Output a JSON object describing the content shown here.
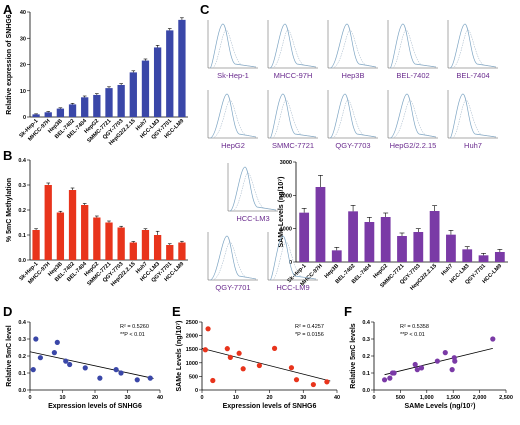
{
  "panel_labels": [
    "A",
    "B",
    "C",
    "D",
    "E",
    "F"
  ],
  "flow_panels": {
    "labels": [
      "Sk-Hep-1",
      "MHCC-97H",
      "Hep3B",
      "BEL-7402",
      "BEL-7404",
      "HepG2",
      "SMMC-7721",
      "QGY-7703",
      "HepG2/2.2.15",
      "Huh7",
      "HCC-LM3",
      "QGY-7701",
      "HCC-LM9"
    ],
    "line_color": "#7fa6c4",
    "label_color": "#6a2b8e"
  },
  "colors": {
    "blue": "#3a47a8",
    "red": "#e8341c",
    "purple": "#7a3aa6",
    "grid": "#000000"
  },
  "chart_data": [
    {
      "id": "A",
      "type": "bar",
      "ylabel": "Relative expression of SNHG6",
      "ylim": [
        0,
        40
      ],
      "yticks": [
        0,
        10,
        20,
        30,
        40
      ],
      "categories": [
        "Sk-Hep-1",
        "MHCC-97H",
        "Hep3B",
        "BEL-7402",
        "BEL-7404",
        "HepG2",
        "SMMC-7721",
        "QGY-7703",
        "HepG2/2.2.15",
        "Huh7",
        "HCC-LM3",
        "QGY-7701",
        "HCC-LM9"
      ],
      "values": [
        1.0,
        1.8,
        3.2,
        4.8,
        7.5,
        8.4,
        11.0,
        12.2,
        17.0,
        21.5,
        26.5,
        33.0,
        37.0
      ],
      "errors": [
        0.2,
        0.3,
        0.3,
        0.4,
        0.5,
        0.5,
        0.5,
        0.5,
        0.6,
        0.6,
        0.8,
        0.7,
        0.8
      ]
    },
    {
      "id": "B",
      "type": "bar",
      "ylabel": "% 5mC Methylation",
      "ylim": [
        0,
        0.4
      ],
      "yticks": [
        0.0,
        0.1,
        0.2,
        0.3,
        0.4
      ],
      "categories": [
        "Sk-Hep-1",
        "MHCC-97H",
        "Hep3B",
        "BEL-7402",
        "BEL-7404",
        "HepG2",
        "SMMC-7721",
        "QGY-7703",
        "Hep/2/2.2.15",
        "Huh7",
        "HCC-LM3",
        "QGY-7701",
        "HCC-LM9"
      ],
      "values": [
        0.12,
        0.3,
        0.19,
        0.28,
        0.22,
        0.17,
        0.15,
        0.13,
        0.07,
        0.12,
        0.1,
        0.06,
        0.07
      ],
      "errors": [
        0.005,
        0.008,
        0.005,
        0.008,
        0.006,
        0.006,
        0.006,
        0.005,
        0.004,
        0.005,
        0.015,
        0.005,
        0.005
      ]
    },
    {
      "id": "C-bar",
      "type": "bar",
      "ylabel": "SAMe Levels (ng/10⁷)",
      "ylim": [
        0,
        3000
      ],
      "yticks": [
        0,
        1000,
        2000,
        3000
      ],
      "categories": [
        "Sk-Hep-1",
        "MHCC-97H",
        "Hep3B",
        "BEL-7402",
        "BEL-7404",
        "HepG2",
        "SMMC-7721",
        "QGY-7703",
        "HepG2/2.2.15",
        "Huh7",
        "HCC-LM3",
        "QGY-7701",
        "HCC-LM9"
      ],
      "values": [
        1480,
        2250,
        350,
        1520,
        1200,
        1350,
        780,
        900,
        1530,
        820,
        380,
        200,
        300
      ],
      "errors": [
        130,
        350,
        90,
        180,
        140,
        120,
        90,
        100,
        160,
        130,
        80,
        60,
        80
      ]
    },
    {
      "id": "D",
      "type": "scatter",
      "xlabel": "Expression levels of SNHG6",
      "ylabel": "Relative 5mC level",
      "xlim": [
        0,
        40
      ],
      "xticks": [
        0,
        10,
        20,
        30,
        40
      ],
      "ylim": [
        0,
        0.4
      ],
      "yticks": [
        0.0,
        0.1,
        0.2,
        0.3,
        0.4
      ],
      "points": [
        [
          1,
          0.12
        ],
        [
          1.8,
          0.3
        ],
        [
          3.2,
          0.19
        ],
        [
          7.5,
          0.22
        ],
        [
          8.4,
          0.28
        ],
        [
          11,
          0.17
        ],
        [
          12.2,
          0.15
        ],
        [
          17,
          0.13
        ],
        [
          21.5,
          0.07
        ],
        [
          26.5,
          0.12
        ],
        [
          28,
          0.1
        ],
        [
          33,
          0.06
        ],
        [
          37,
          0.07
        ]
      ],
      "fit": [
        [
          0,
          0.225
        ],
        [
          38,
          0.068
        ]
      ],
      "stats": {
        "r2": "R² = 0.5260",
        "p": "**P < 0.01"
      }
    },
    {
      "id": "E",
      "type": "scatter",
      "xlabel": "Expression levels of SNHG6",
      "ylabel": "SAMe Levels (ng/10⁷)",
      "xlim": [
        0,
        40
      ],
      "xticks": [
        0,
        10,
        20,
        30,
        40
      ],
      "ylim": [
        0,
        2500
      ],
      "yticks": [
        0,
        500,
        1000,
        1500,
        2000,
        2500
      ],
      "points": [
        [
          1,
          1480
        ],
        [
          1.8,
          2250
        ],
        [
          3.2,
          350
        ],
        [
          7.5,
          1520
        ],
        [
          8.4,
          1200
        ],
        [
          11,
          1350
        ],
        [
          12.2,
          780
        ],
        [
          17,
          900
        ],
        [
          21.5,
          1530
        ],
        [
          26.5,
          820
        ],
        [
          28,
          380
        ],
        [
          33,
          200
        ],
        [
          37,
          300
        ]
      ],
      "fit": [
        [
          0,
          1530
        ],
        [
          38,
          330
        ]
      ],
      "stats": {
        "r2": "R² = 0.4257",
        "p": "*P = 0.0156"
      }
    },
    {
      "id": "F",
      "type": "scatter",
      "xlabel": "SAMe Levels (ng/10⁷)",
      "ylabel": "Relative 5mC levels",
      "xlim": [
        0,
        2500
      ],
      "xticks": [
        0,
        500,
        1000,
        1500,
        2000,
        2500
      ],
      "xticklabels": [
        "0",
        "500",
        "1,000",
        "1,500",
        "2,000",
        "2,500"
      ],
      "ylim": [
        0,
        0.4
      ],
      "yticks": [
        0.0,
        0.1,
        0.2,
        0.3,
        0.4
      ],
      "points": [
        [
          200,
          0.06
        ],
        [
          300,
          0.07
        ],
        [
          350,
          0.1
        ],
        [
          380,
          0.1
        ],
        [
          780,
          0.15
        ],
        [
          820,
          0.12
        ],
        [
          900,
          0.13
        ],
        [
          1200,
          0.17
        ],
        [
          1350,
          0.22
        ],
        [
          1480,
          0.12
        ],
        [
          1520,
          0.19
        ],
        [
          1530,
          0.17
        ],
        [
          2250,
          0.3
        ]
      ],
      "fit": [
        [
          200,
          0.09
        ],
        [
          2250,
          0.245
        ]
      ],
      "stats": {
        "r2": "R² = 0.5358",
        "p": "**P < 0.01"
      }
    }
  ]
}
